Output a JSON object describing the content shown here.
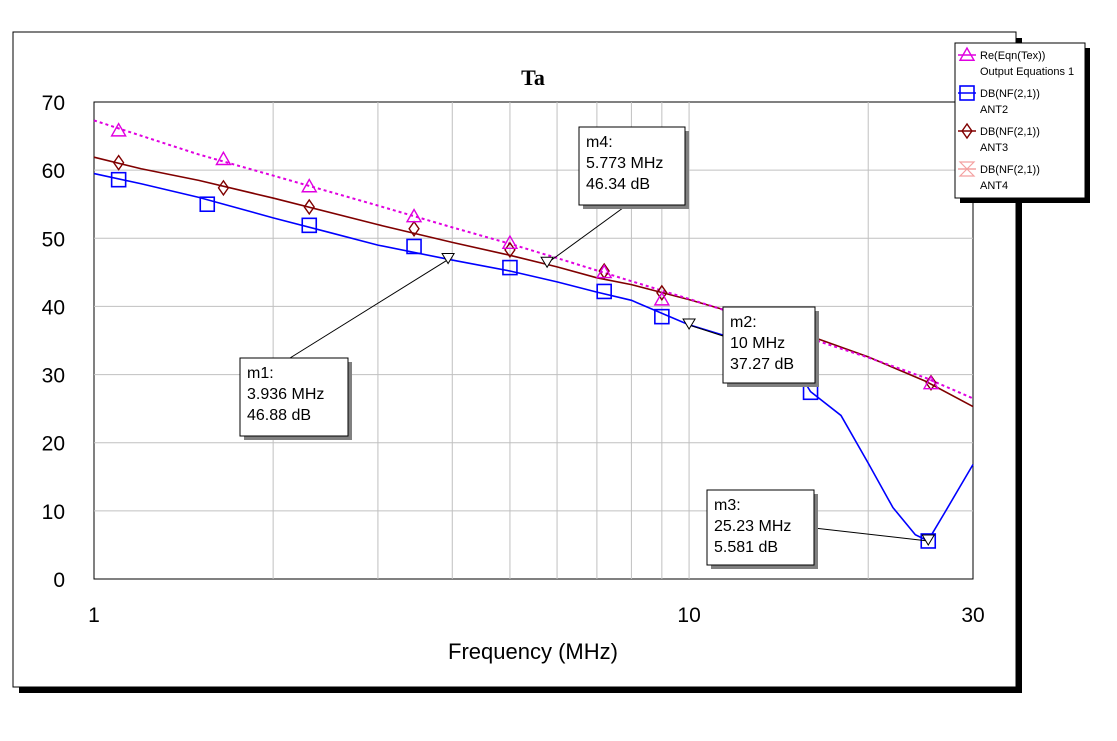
{
  "chart_data": {
    "type": "line",
    "title": "Ta",
    "xlabel": "Frequency (MHz)",
    "ylabel": "",
    "x_scale": "log",
    "xlim": [
      1,
      30
    ],
    "ylim": [
      0,
      70
    ],
    "x_ticks": [
      "1",
      "10",
      "30"
    ],
    "y_ticks": [
      "0",
      "10",
      "20",
      "30",
      "40",
      "50",
      "60",
      "70"
    ],
    "grid": true,
    "legend_position": "top-right",
    "series": [
      {
        "name": "Re(Eqn(Tex))",
        "subname": "Output Equations 1",
        "color": "#e000e0",
        "style": "dotted",
        "marker": "triangle",
        "x": [
          1,
          1.5,
          2,
          3,
          4,
          5,
          6,
          8,
          10,
          12,
          15,
          18,
          20,
          25,
          30
        ],
        "y": [
          67.3,
          62.3,
          59.2,
          54.8,
          51.6,
          49.2,
          47.1,
          43.7,
          41.1,
          38.9,
          36.1,
          33.8,
          32.5,
          29.5,
          26.5
        ],
        "marker_points": [
          [
            1.1,
            65.8
          ],
          [
            1.65,
            61.6
          ],
          [
            2.3,
            57.6
          ],
          [
            3.45,
            53.2
          ],
          [
            5.0,
            49.3
          ],
          [
            7.2,
            45.0
          ],
          [
            9.0,
            41.0
          ],
          [
            16.0,
            32.9
          ],
          [
            25.5,
            28.7
          ]
        ]
      },
      {
        "name": "DB(NF(2,1))",
        "subname": "ANT2",
        "color": "#0000ff",
        "style": "solid",
        "marker": "square",
        "x": [
          1,
          1.2,
          1.5,
          2,
          2.5,
          3,
          4,
          5,
          6,
          7,
          8,
          10,
          12,
          15,
          16,
          18,
          20,
          22,
          24,
          25.2,
          27,
          30
        ],
        "y": [
          59.5,
          58.0,
          56.0,
          53.0,
          50.8,
          49.0,
          46.8,
          45.2,
          43.6,
          42.1,
          40.9,
          37.3,
          35.2,
          31.5,
          27.5,
          24.0,
          17.0,
          10.5,
          6.5,
          5.6,
          10.0,
          16.8
        ],
        "marker_points": [
          [
            1.1,
            58.6
          ],
          [
            1.55,
            55.0
          ],
          [
            2.3,
            51.9
          ],
          [
            3.45,
            48.8
          ],
          [
            5.0,
            45.7
          ],
          [
            7.2,
            42.2
          ],
          [
            9.0,
            38.5
          ],
          [
            16.0,
            27.4
          ],
          [
            25.23,
            5.58
          ]
        ]
      },
      {
        "name": "DB(NF(2,1))",
        "subname": "ANT3",
        "color": "#800000",
        "style": "solid",
        "marker": "diamond",
        "x": [
          1,
          1.2,
          1.5,
          2,
          3,
          4,
          5,
          6,
          7,
          8,
          10,
          12,
          15,
          20,
          25,
          30
        ],
        "y": [
          61.9,
          60.2,
          58.5,
          55.9,
          52.0,
          49.4,
          47.5,
          45.8,
          44.2,
          43.2,
          41.0,
          39.0,
          36.5,
          32.6,
          29.0,
          25.3
        ],
        "marker_points": [
          [
            1.1,
            61.1
          ],
          [
            1.65,
            57.4
          ],
          [
            2.3,
            54.6
          ],
          [
            3.45,
            51.4
          ],
          [
            5.0,
            48.3
          ],
          [
            7.2,
            45.2
          ],
          [
            9.0,
            42.0
          ],
          [
            16.0,
            35.1
          ],
          [
            25.5,
            28.8
          ]
        ]
      },
      {
        "name": "DB(NF(2,1))",
        "subname": "ANT4",
        "color": "#f4a0a0",
        "style": "solid",
        "marker": "hourglass",
        "x": [],
        "y": [],
        "marker_points": []
      }
    ],
    "markers": [
      {
        "label": "m1:",
        "freq": "3.936 MHz",
        "value": "46.88 dB",
        "x": 3.936,
        "y": 46.88
      },
      {
        "label": "m4:",
        "freq": "5.773 MHz",
        "value": "46.34 dB",
        "x": 5.773,
        "y": 46.34
      },
      {
        "label": "m2:",
        "freq": "10 MHz",
        "value": "37.27 dB",
        "x": 10,
        "y": 37.27
      },
      {
        "label": "m3:",
        "freq": "25.23 MHz",
        "value": "5.581 dB",
        "x": 25.23,
        "y": 5.581
      }
    ]
  }
}
